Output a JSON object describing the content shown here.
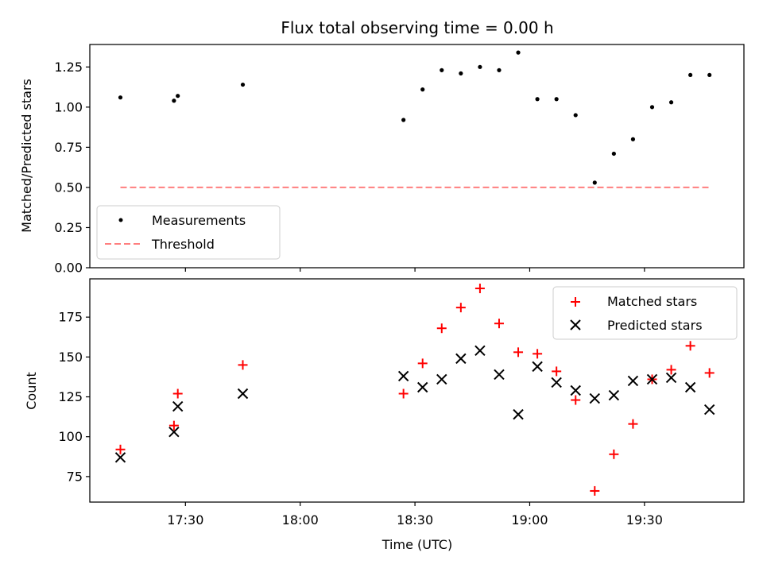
{
  "title": "Flux total observing time = 0.00 h",
  "chart_data": [
    {
      "type": "scatter",
      "ylabel": "Matched/Predicted stars",
      "ylim": [
        0,
        1.39
      ],
      "yticks": [
        0.0,
        0.25,
        0.5,
        0.75,
        1.0,
        1.25
      ],
      "ytick_labels": [
        "0.00",
        "0.25",
        "0.50",
        "0.75",
        "1.00",
        "1.25"
      ],
      "xlim_min": [
        1025,
        1196
      ],
      "legend": {
        "placement": "lower-left"
      },
      "series": [
        {
          "name": "Measurements",
          "kind": "scatter",
          "marker": "dot",
          "color": "#000000",
          "x": [
            "17:13",
            "17:27",
            "17:28",
            "17:45",
            "18:27",
            "18:32",
            "18:37",
            "18:42",
            "18:47",
            "18:52",
            "18:57",
            "19:02",
            "19:07",
            "19:12",
            "19:17",
            "19:22",
            "19:27",
            "19:32",
            "19:37",
            "19:42",
            "19:47"
          ],
          "y": [
            1.06,
            1.04,
            1.07,
            1.14,
            0.92,
            1.11,
            1.23,
            1.21,
            1.25,
            1.23,
            1.34,
            1.05,
            1.05,
            0.95,
            0.53,
            0.71,
            0.8,
            1.0,
            1.03,
            1.2,
            1.2
          ]
        },
        {
          "name": "Threshold",
          "kind": "dashed-line",
          "color": "#ff7f7f",
          "x": [
            "17:13",
            "19:47"
          ],
          "y": [
            0.5,
            0.5
          ]
        }
      ]
    },
    {
      "type": "scatter",
      "ylabel": "Count",
      "xlabel": "Time (UTC)",
      "ylim": [
        59,
        199
      ],
      "yticks": [
        75,
        100,
        125,
        150,
        175
      ],
      "ytick_labels": [
        "75",
        "100",
        "125",
        "150",
        "175"
      ],
      "xlim_min": [
        1025,
        1196
      ],
      "xticks_min": [
        1050,
        1080,
        1110,
        1140,
        1170
      ],
      "xtick_labels": [
        "17:30",
        "18:00",
        "18:30",
        "19:00",
        "19:30"
      ],
      "legend": {
        "placement": "top-right"
      },
      "series": [
        {
          "name": "Matched stars",
          "kind": "scatter",
          "marker": "plus",
          "color": "#ff0000",
          "x": [
            "17:13",
            "17:27",
            "17:28",
            "17:45",
            "18:27",
            "18:32",
            "18:37",
            "18:42",
            "18:47",
            "18:52",
            "18:57",
            "19:02",
            "19:07",
            "19:12",
            "19:17",
            "19:22",
            "19:27",
            "19:32",
            "19:37",
            "19:42",
            "19:47"
          ],
          "y": [
            92,
            107,
            127,
            145,
            127,
            146,
            168,
            181,
            193,
            171,
            153,
            152,
            141,
            123,
            66,
            89,
            108,
            136,
            142,
            157,
            140
          ]
        },
        {
          "name": "Predicted stars",
          "kind": "scatter",
          "marker": "x",
          "color": "#000000",
          "x": [
            "17:13",
            "17:27",
            "17:28",
            "17:45",
            "18:27",
            "18:32",
            "18:37",
            "18:42",
            "18:47",
            "18:52",
            "18:57",
            "19:02",
            "19:07",
            "19:12",
            "19:17",
            "19:22",
            "19:27",
            "19:32",
            "19:37",
            "19:42",
            "19:47"
          ],
          "y": [
            87,
            103,
            119,
            127,
            138,
            131,
            136,
            149,
            154,
            139,
            114,
            144,
            134,
            129,
            124,
            126,
            135,
            136,
            137,
            131,
            117
          ]
        }
      ]
    }
  ]
}
